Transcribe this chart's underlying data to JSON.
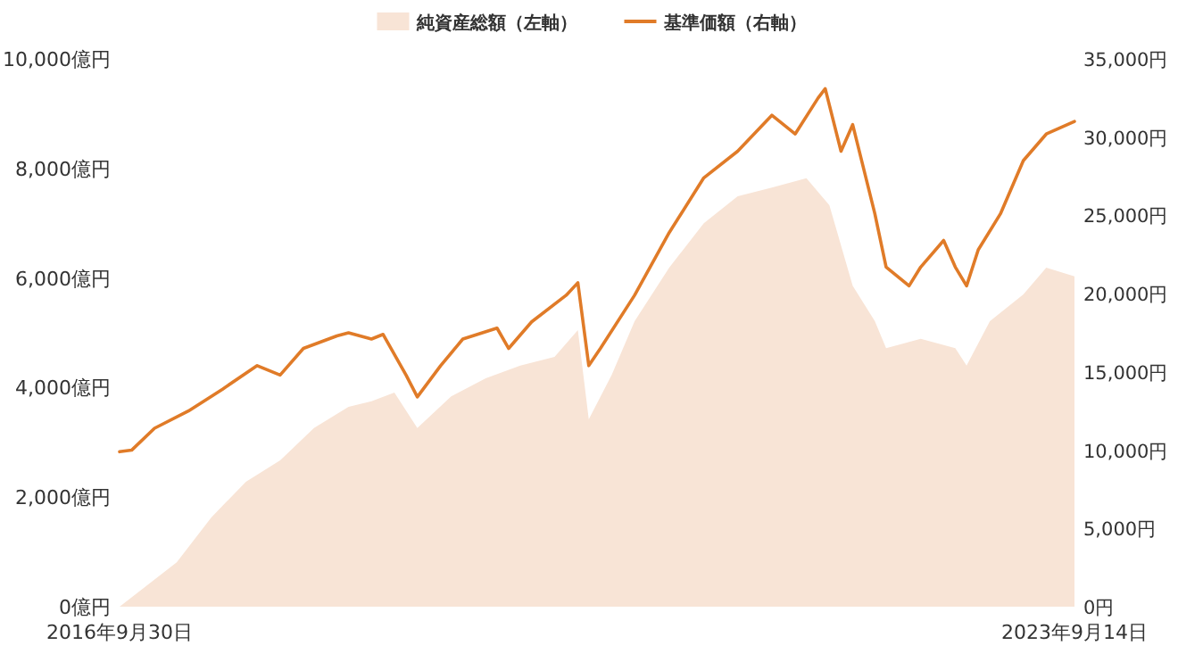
{
  "chart_data": {
    "type": "area",
    "legend": "top",
    "grid": false,
    "xlim": [
      "2016-09-30",
      "2023-09-14"
    ],
    "xticks": [
      {
        "value": "2016-09-30",
        "label": "2016年9月30日"
      },
      {
        "value": "2023-09-14",
        "label": "2023年9月14日"
      }
    ],
    "ylim": [
      0,
      10000
    ],
    "yticks": [
      {
        "value": 0,
        "label": "0億円"
      },
      {
        "value": 2000,
        "label": "2,000億円"
      },
      {
        "value": 4000,
        "label": "4,000億円"
      },
      {
        "value": 6000,
        "label": "6,000億円"
      },
      {
        "value": 8000,
        "label": "8,000億円"
      },
      {
        "value": 10000,
        "label": "10,000億円"
      }
    ],
    "y2lim": [
      0,
      35000
    ],
    "y2ticks": [
      {
        "value": 0,
        "label": "0円"
      },
      {
        "value": 5000,
        "label": "5,000円"
      },
      {
        "value": 10000,
        "label": "10,000円"
      },
      {
        "value": 15000,
        "label": "15,000円"
      },
      {
        "value": 20000,
        "label": "20,000円"
      },
      {
        "value": 25000,
        "label": "25,000円"
      },
      {
        "value": 30000,
        "label": "30,000円"
      },
      {
        "value": 35000,
        "label": "35,000円"
      }
    ],
    "series": [
      {
        "name": "純資産総額（左軸）",
        "color": "#f8e4d6",
        "x": [
          "2016-09-30",
          "2017-03",
          "2017-06",
          "2017-09",
          "2017-12",
          "2018-03",
          "2018-06",
          "2018-08",
          "2018-10",
          "2018-12",
          "2019-03",
          "2019-06",
          "2019-09",
          "2019-12",
          "2020-02",
          "2020-03",
          "2020-05",
          "2020-07",
          "2020-10",
          "2021-01",
          "2021-04",
          "2021-07",
          "2021-10",
          "2021-12",
          "2022-02",
          "2022-04",
          "2022-05",
          "2022-08",
          "2022-11",
          "2022-12",
          "2023-02",
          "2023-05",
          "2023-07",
          "2023-09-14"
        ],
        "values": [
          0,
          810,
          1630,
          2280,
          2670,
          3260,
          3650,
          3750,
          3910,
          3260,
          3840,
          4170,
          4400,
          4560,
          5050,
          3420,
          4230,
          5210,
          6190,
          7000,
          7490,
          7650,
          7820,
          7330,
          5860,
          5210,
          4720,
          4890,
          4720,
          4400,
          5210,
          5700,
          6190,
          6030
        ]
      },
      {
        "name": "基準価額（右軸）",
        "type": "line",
        "axis": "y2",
        "color": "#e07b28",
        "x": [
          "2016-09-30",
          "2016-11",
          "2017-01",
          "2017-04",
          "2017-07",
          "2017-10",
          "2017-12",
          "2018-02",
          "2018-05",
          "2018-06",
          "2018-08",
          "2018-09",
          "2018-11",
          "2018-12",
          "2019-02",
          "2019-04",
          "2019-07",
          "2019-08",
          "2019-10",
          "2020-01",
          "2020-02",
          "2020-03",
          "2020-04",
          "2020-07",
          "2020-10",
          "2021-01",
          "2021-04",
          "2021-07",
          "2021-09",
          "2021-11-01",
          "2021-11-20",
          "2022-01",
          "2022-02",
          "2022-04",
          "2022-05",
          "2022-07",
          "2022-08",
          "2022-10",
          "2022-11",
          "2022-12",
          "2023-01",
          "2023-03",
          "2023-05",
          "2023-07",
          "2023-09-14"
        ],
        "values": [
          9900,
          10000,
          11400,
          12500,
          13900,
          15400,
          14800,
          16500,
          17300,
          17500,
          17100,
          17400,
          14800,
          13400,
          15400,
          17100,
          17800,
          16500,
          18200,
          19900,
          20700,
          15400,
          16500,
          19900,
          23900,
          27400,
          29100,
          31400,
          30200,
          32500,
          33100,
          29100,
          30800,
          25100,
          21700,
          20500,
          21700,
          23400,
          21700,
          20500,
          22800,
          25100,
          28500,
          30200,
          31000
        ]
      }
    ]
  }
}
